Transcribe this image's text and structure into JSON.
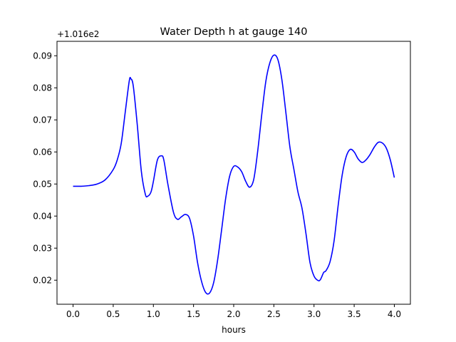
{
  "chart_data": {
    "type": "line",
    "title": "Water Depth h at gauge 140",
    "xlabel": "hours",
    "ylabel": "",
    "y_offset_label": "+1.016e2",
    "xlim": [
      -0.2,
      4.2
    ],
    "ylim": [
      0.0125,
      0.0945
    ],
    "x_ticks": [
      0.0,
      0.5,
      1.0,
      1.5,
      2.0,
      2.5,
      3.0,
      3.5,
      4.0
    ],
    "x_tick_labels": [
      "0.0",
      "0.5",
      "1.0",
      "1.5",
      "2.0",
      "2.5",
      "3.0",
      "3.5",
      "4.0"
    ],
    "y_ticks": [
      0.02,
      0.03,
      0.04,
      0.05,
      0.06,
      0.07,
      0.08,
      0.09
    ],
    "y_tick_labels": [
      "0.02",
      "0.03",
      "0.04",
      "0.05",
      "0.06",
      "0.07",
      "0.08",
      "0.09"
    ],
    "grid": false,
    "line_color": "#0000ff",
    "series": [
      {
        "x": [
          0.0,
          0.1,
          0.2,
          0.3,
          0.4,
          0.5,
          0.55,
          0.6,
          0.65,
          0.7,
          0.72,
          0.75,
          0.8,
          0.85,
          0.9,
          0.93,
          0.97,
          1.0,
          1.05,
          1.1,
          1.13,
          1.18,
          1.25,
          1.3,
          1.35,
          1.4,
          1.45,
          1.5,
          1.55,
          1.6,
          1.65,
          1.7,
          1.75,
          1.8,
          1.85,
          1.9,
          1.95,
          2.0,
          2.05,
          2.1,
          2.15,
          2.2,
          2.25,
          2.3,
          2.35,
          2.4,
          2.45,
          2.5,
          2.55,
          2.6,
          2.65,
          2.7,
          2.75,
          2.8,
          2.85,
          2.9,
          2.95,
          3.0,
          3.05,
          3.08,
          3.12,
          3.15,
          3.2,
          3.25,
          3.3,
          3.35,
          3.4,
          3.45,
          3.5,
          3.55,
          3.6,
          3.65,
          3.7,
          3.75,
          3.8,
          3.85,
          3.9,
          3.95,
          4.0
        ],
        "values": [
          0.0493,
          0.0493,
          0.0495,
          0.05,
          0.0513,
          0.0545,
          0.0575,
          0.0627,
          0.0725,
          0.0822,
          0.0828,
          0.0805,
          0.0683,
          0.054,
          0.0468,
          0.0462,
          0.0475,
          0.0508,
          0.0575,
          0.0588,
          0.0575,
          0.05,
          0.0412,
          0.039,
          0.0398,
          0.0405,
          0.0393,
          0.0338,
          0.0255,
          0.0196,
          0.0162,
          0.016,
          0.0192,
          0.0263,
          0.0358,
          0.0455,
          0.0525,
          0.0555,
          0.0553,
          0.0538,
          0.0508,
          0.049,
          0.0515,
          0.0605,
          0.0718,
          0.082,
          0.0878,
          0.0902,
          0.0888,
          0.0825,
          0.0722,
          0.0615,
          0.0545,
          0.0475,
          0.0425,
          0.0345,
          0.0255,
          0.0213,
          0.0199,
          0.0202,
          0.0224,
          0.023,
          0.0258,
          0.0323,
          0.0432,
          0.0527,
          0.0585,
          0.0608,
          0.06,
          0.0578,
          0.0567,
          0.0576,
          0.0593,
          0.0615,
          0.063,
          0.0628,
          0.0612,
          0.0575,
          0.052
        ]
      }
    ]
  }
}
